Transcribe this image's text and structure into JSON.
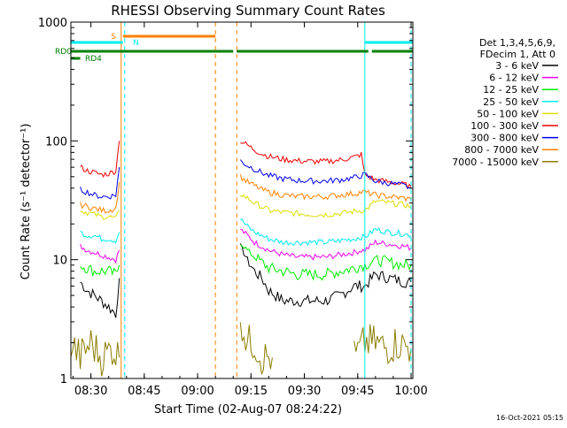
{
  "chart_data": {
    "type": "line",
    "title": "RHESSI Observing Summary Count Rates",
    "xlabel": "Start Time (02-Aug-07 08:24:22)",
    "ylabel": "Count Rate (s⁻¹ detector⁻¹)",
    "y_scale": "log",
    "ylim": [
      1,
      1000
    ],
    "xlim": [
      "08:24:22",
      "10:00:30"
    ],
    "x_ticks": [
      "08:30",
      "08:45",
      "09:00",
      "09:15",
      "09:30",
      "09:45",
      "10:00"
    ],
    "y_ticks": [
      "1",
      "10",
      "100",
      "1000"
    ],
    "timestamp": "16-Oct-2021 05:15",
    "legend": {
      "position": "right",
      "header": [
        "Det 1,3,4,5,6,9,",
        "FDecim 1, Att 0"
      ],
      "entries": [
        {
          "label": "3 - 6 keV",
          "color": "#000000"
        },
        {
          "label": "6 - 12 keV",
          "color": "#ee00ee"
        },
        {
          "label": "12 - 25 keV",
          "color": "#00ee00"
        },
        {
          "label": "25 - 50 keV",
          "color": "#00eeee"
        },
        {
          "label": "50 - 100 keV",
          "color": "#dddd00"
        },
        {
          "label": "100 - 300 keV",
          "color": "#ee0000"
        },
        {
          "label": "300 - 800 keV",
          "color": "#0000ee"
        },
        {
          "label": "800 - 7000 keV",
          "color": "#ff8000"
        },
        {
          "label": "7000 - 15000 keV",
          "color": "#8b7d00"
        }
      ]
    },
    "flag_bars": [
      {
        "label": "S",
        "color": "#ff8000",
        "segments": [
          [
            "08:39",
            "09:05"
          ]
        ]
      },
      {
        "label": "N",
        "color": "#00eeee",
        "segments": [
          [
            "08:24:22",
            "08:39"
          ],
          [
            "09:47",
            "10:00:30"
          ]
        ]
      },
      {
        "label": "RD0",
        "color": "#008000",
        "segments": [
          [
            "08:24:22",
            "09:05"
          ],
          [
            "09:05",
            "09:10"
          ],
          [
            "09:11",
            "09:48"
          ],
          [
            "09:49",
            "10:00:30"
          ]
        ]
      },
      {
        "label": "RD4",
        "color": "#008000",
        "segments": [
          [
            "08:24:22",
            "08:27"
          ]
        ]
      }
    ],
    "vertical_markers": [
      {
        "time": "08:24:22",
        "color": "#00eeee",
        "style": "solid"
      },
      {
        "time": "08:38:30",
        "color": "#ff8000",
        "style": "solid"
      },
      {
        "time": "08:39:30",
        "color": "#00eeee",
        "style": "dashed"
      },
      {
        "time": "09:05",
        "color": "#ff8000",
        "style": "dashed"
      },
      {
        "time": "09:11",
        "color": "#ff8000",
        "style": "dashed"
      },
      {
        "time": "09:47",
        "color": "#00eeee",
        "style": "solid"
      },
      {
        "time": "10:00",
        "color": "#00eeee",
        "style": "dashed"
      }
    ],
    "series": [
      {
        "name": "3 - 6 keV",
        "color": "#000000",
        "segments": [
          {
            "t": [
              "08:27",
              "08:29",
              "08:31",
              "08:33",
              "08:35",
              "08:37",
              "08:38"
            ],
            "y": [
              6.5,
              5.5,
              5,
              4.5,
              4,
              3.5,
              7
            ]
          },
          {
            "t": [
              "09:12",
              "09:14",
              "09:16",
              "09:18",
              "09:20",
              "09:24",
              "09:28",
              "09:32",
              "09:36",
              "09:40",
              "09:44",
              "09:46",
              "09:47",
              "09:50",
              "09:54",
              "09:58",
              "10:00"
            ],
            "y": [
              13,
              10,
              8,
              7,
              5.5,
              4.5,
              4.5,
              4.5,
              4.5,
              5,
              6,
              6,
              6,
              7.5,
              7,
              6.5,
              6.5
            ]
          }
        ]
      },
      {
        "name": "6 - 12 keV",
        "color": "#ee00ee",
        "segments": [
          {
            "t": [
              "08:27",
              "08:29",
              "08:31",
              "08:33",
              "08:35",
              "08:37",
              "08:38"
            ],
            "y": [
              13,
              12,
              11.5,
              11,
              10.5,
              10,
              12
            ]
          },
          {
            "t": [
              "09:12",
              "09:14",
              "09:16",
              "09:18",
              "09:20",
              "09:24",
              "09:28",
              "09:32",
              "09:36",
              "09:40",
              "09:44",
              "09:46",
              "09:47",
              "09:50",
              "09:54",
              "09:58",
              "10:00"
            ],
            "y": [
              18,
              16,
              14,
              13,
              12,
              11,
              10.5,
              10.5,
              10.5,
              11,
              11.5,
              12,
              12,
              14,
              13.5,
              13,
              12.5
            ]
          }
        ]
      },
      {
        "name": "12 - 25 keV",
        "color": "#00ee00",
        "segments": [
          {
            "t": [
              "08:27",
              "08:29",
              "08:31",
              "08:33",
              "08:35",
              "08:37",
              "08:38"
            ],
            "y": [
              9,
              8.5,
              8,
              8,
              8,
              7.5,
              9
            ]
          },
          {
            "t": [
              "09:12",
              "09:14",
              "09:16",
              "09:18",
              "09:20",
              "09:24",
              "09:28",
              "09:32",
              "09:36",
              "09:40",
              "09:44",
              "09:46",
              "09:47",
              "09:50",
              "09:54",
              "09:58",
              "10:00"
            ],
            "y": [
              14,
              12,
              10.5,
              9.5,
              8.5,
              8,
              7.5,
              7.5,
              7.5,
              8,
              8.5,
              9,
              9,
              10,
              9.5,
              9,
              9
            ]
          }
        ]
      },
      {
        "name": "25 - 50 keV",
        "color": "#00eeee",
        "segments": [
          {
            "t": [
              "08:27",
              "08:29",
              "08:31",
              "08:33",
              "08:35",
              "08:37",
              "08:38"
            ],
            "y": [
              17,
              16,
              16,
              15,
              15,
              14.5,
              17
            ]
          },
          {
            "t": [
              "09:12",
              "09:14",
              "09:16",
              "09:18",
              "09:20",
              "09:24",
              "09:28",
              "09:32",
              "09:36",
              "09:40",
              "09:44",
              "09:46",
              "09:47",
              "09:50",
              "09:54",
              "09:58",
              "10:00"
            ],
            "y": [
              22,
              19,
              17,
              16,
              15,
              14,
              14,
              14,
              14,
              14.5,
              15,
              15.5,
              15.5,
              18,
              17,
              16.5,
              16
            ]
          }
        ]
      },
      {
        "name": "50 - 100 keV",
        "color": "#dddd00",
        "segments": [
          {
            "t": [
              "08:27",
              "08:29",
              "08:31",
              "08:33",
              "08:35",
              "08:37",
              "08:38"
            ],
            "y": [
              26,
              25,
              24,
              23,
              23,
              22,
              26
            ]
          },
          {
            "t": [
              "09:12",
              "09:14",
              "09:16",
              "09:18",
              "09:20",
              "09:24",
              "09:28",
              "09:32",
              "09:36",
              "09:40",
              "09:44",
              "09:46",
              "09:47",
              "09:50",
              "09:54",
              "09:58",
              "10:00"
            ],
            "y": [
              36,
              33,
              30,
              28,
              26,
              25,
              24.5,
              24,
              24,
              24.5,
              25.5,
              26,
              26,
              31,
              30,
              29,
              28
            ]
          }
        ]
      },
      {
        "name": "100 - 300 keV",
        "color": "#ee0000",
        "segments": [
          {
            "t": [
              "08:27",
              "08:29",
              "08:31",
              "08:33",
              "08:35",
              "08:37",
              "08:38"
            ],
            "y": [
              60,
              56,
              54,
              52,
              53,
              56,
              100
            ]
          },
          {
            "t": [
              "09:12",
              "09:14",
              "09:16",
              "09:18",
              "09:20",
              "09:24",
              "09:28",
              "09:32",
              "09:36",
              "09:40",
              "09:44",
              "09:46",
              "09:47",
              "09:50",
              "09:54",
              "09:58",
              "10:00"
            ],
            "y": [
              100,
              92,
              84,
              78,
              74,
              70,
              68,
              67,
              67,
              69,
              73,
              77,
              52,
              47,
              45,
              43,
              41
            ]
          }
        ]
      },
      {
        "name": "300 - 800 keV",
        "color": "#0000ee",
        "segments": [
          {
            "t": [
              "08:27",
              "08:29",
              "08:31",
              "08:33",
              "08:35",
              "08:37",
              "08:38"
            ],
            "y": [
              39,
              37,
              35,
              34,
              34,
              35,
              60
            ]
          },
          {
            "t": [
              "09:12",
              "09:14",
              "09:16",
              "09:18",
              "09:20",
              "09:24",
              "09:28",
              "09:32",
              "09:36",
              "09:40",
              "09:44",
              "09:46",
              "09:47",
              "09:50",
              "09:54",
              "09:58",
              "10:00"
            ],
            "y": [
              68,
              62,
              58,
              54,
              51,
              48,
              46.5,
              46,
              46,
              47,
              49,
              51,
              52,
              46,
              44,
              42,
              40
            ]
          }
        ]
      },
      {
        "name": "800 - 7000 keV",
        "color": "#ff8000",
        "segments": [
          {
            "t": [
              "08:27",
              "08:29",
              "08:31",
              "08:33",
              "08:35",
              "08:37",
              "08:38"
            ],
            "y": [
              29,
              28,
              27,
              26,
              26,
              27,
              45
            ]
          },
          {
            "t": [
              "09:12",
              "09:14",
              "09:16",
              "09:18",
              "09:20",
              "09:24",
              "09:28",
              "09:32",
              "09:36",
              "09:40",
              "09:44",
              "09:46",
              "09:47",
              "09:50",
              "09:54",
              "09:58",
              "10:00"
            ],
            "y": [
              50,
              45,
              42,
              39,
              37,
              35,
              34,
              34,
              34,
              35,
              36,
              37,
              37,
              35,
              34,
              33,
              32
            ]
          }
        ]
      },
      {
        "name": "7000 - 15000 keV",
        "color": "#8b7d00",
        "segments": [
          {
            "t": [
              "08:24:22",
              "08:27",
              "08:30",
              "08:33",
              "08:36",
              "08:38"
            ],
            "y": [
              2,
              1.5,
              2,
              1.5,
              1.8,
              1.5
            ]
          },
          {
            "t": [
              "09:12",
              "09:13",
              "09:14",
              "09:16",
              "09:18",
              "09:21"
            ],
            "y": [
              3.5,
              2.5,
              2,
              2,
              1.5,
              1.5
            ]
          },
          {
            "t": [
              "09:44",
              "09:47",
              "09:50",
              "09:53",
              "09:56",
              "10:00"
            ],
            "y": [
              1.5,
              2,
              2,
              1.8,
              2,
              1.8
            ]
          }
        ]
      }
    ]
  }
}
